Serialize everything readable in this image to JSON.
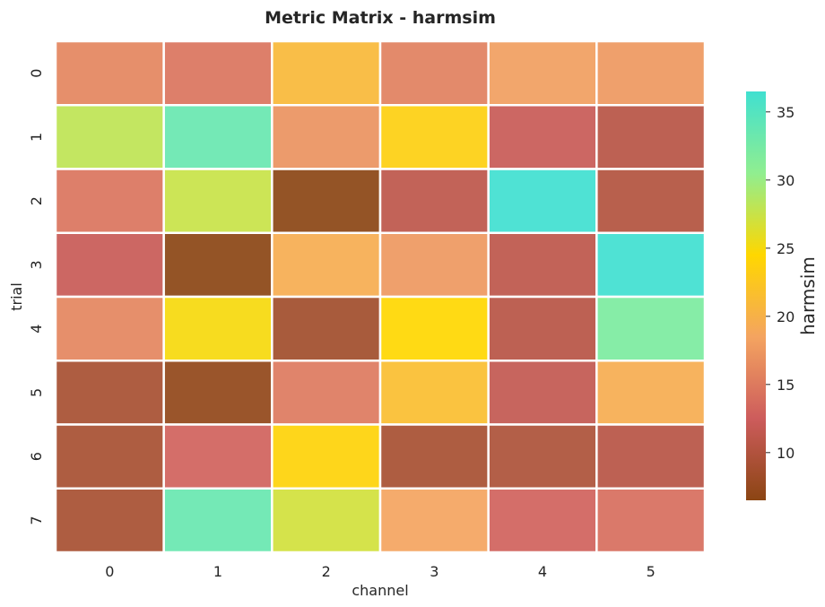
{
  "chart_data": {
    "type": "heatmap",
    "title": "Metric Matrix - harmsim",
    "xlabel": "channel",
    "ylabel": "trial",
    "x_categories": [
      "0",
      "1",
      "2",
      "3",
      "4",
      "5"
    ],
    "y_categories": [
      "0",
      "1",
      "2",
      "3",
      "4",
      "5",
      "6",
      "7"
    ],
    "values": [
      [
        16.0,
        14.5,
        21.0,
        15.5,
        18.0,
        17.5
      ],
      [
        28.0,
        33.5,
        17.0,
        23.5,
        12.0,
        10.5
      ],
      [
        14.5,
        27.5,
        6.5,
        11.0,
        36.5,
        10.0
      ],
      [
        12.0,
        6.5,
        19.5,
        17.5,
        11.0,
        36.5
      ],
      [
        16.0,
        25.0,
        8.5,
        24.5,
        10.5,
        32.0
      ],
      [
        9.0,
        7.0,
        15.0,
        21.5,
        11.5,
        19.5
      ],
      [
        9.0,
        13.0,
        24.0,
        9.0,
        9.5,
        10.5
      ],
      [
        9.0,
        33.5,
        27.0,
        18.5,
        13.0,
        14.0
      ]
    ],
    "colorbar": {
      "label": "harmsim",
      "min": 6.5,
      "max": 36.5,
      "ticks": [
        10,
        15,
        20,
        25,
        30,
        35
      ]
    },
    "colorscale": [
      "#8b4513",
      "#cd5c5c",
      "#f4a460",
      "#ffd700",
      "#90ee90",
      "#40e0d0"
    ],
    "grid": false
  }
}
